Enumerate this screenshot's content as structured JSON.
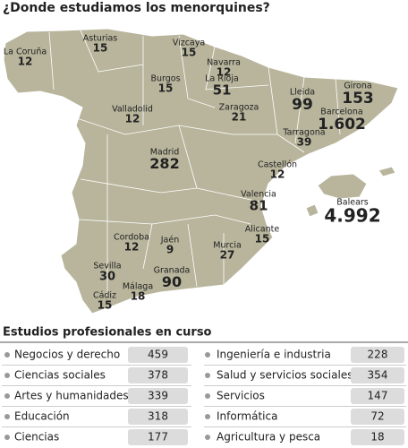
{
  "header": {
    "title": "¿Donde estudiamos los menorquines?"
  },
  "map": {
    "regions": [
      {
        "name": "La Coruña",
        "value": 12
      },
      {
        "name": "Asturias",
        "value": 15
      },
      {
        "name": "Vizcaya",
        "value": 15
      },
      {
        "name": "Navarra",
        "value": 12
      },
      {
        "name": "Burgos",
        "value": 15
      },
      {
        "name": "La Rioja",
        "value": 51
      },
      {
        "name": "Valladolid",
        "value": 12
      },
      {
        "name": "Zaragoza",
        "value": 21
      },
      {
        "name": "Lleida",
        "value": 99
      },
      {
        "name": "Girona",
        "value": 153
      },
      {
        "name": "Barcelona",
        "value": {
          "value": 1602,
          "label": "1.602"
        }
      },
      {
        "name": "Tarragona",
        "value": 39
      },
      {
        "name": "Madrid",
        "value": 282
      },
      {
        "name": "Castellón",
        "value": 12
      },
      {
        "name": "Balears",
        "value": {
          "value": 4992,
          "label": "4.992"
        }
      },
      {
        "name": "Valencia",
        "value": 81
      },
      {
        "name": "Alicante",
        "value": 15
      },
      {
        "name": "Cordoba",
        "value": 12
      },
      {
        "name": "Jaén",
        "value": 9
      },
      {
        "name": "Murcia",
        "value": 27
      },
      {
        "name": "Sevilla",
        "value": 30
      },
      {
        "name": "Granada",
        "value": 90
      },
      {
        "name": "Málaga",
        "value": 18
      },
      {
        "name": "Cádiz",
        "value": 15
      }
    ]
  },
  "table": {
    "title": "Estudios profesionales en curso",
    "rows": [
      [
        "Negocios y derecho",
        459
      ],
      [
        "Ciencias sociales",
        378
      ],
      [
        "Artes y humanidades",
        339
      ],
      [
        "Educación",
        318
      ],
      [
        "Ciencias",
        177
      ],
      [
        "Ingeniería e industria",
        228
      ],
      [
        "Salud y servicios sociales",
        354
      ],
      [
        "Servicios",
        147
      ],
      [
        "Informática",
        72
      ],
      [
        "Agricultura y pesca",
        18
      ]
    ]
  }
}
